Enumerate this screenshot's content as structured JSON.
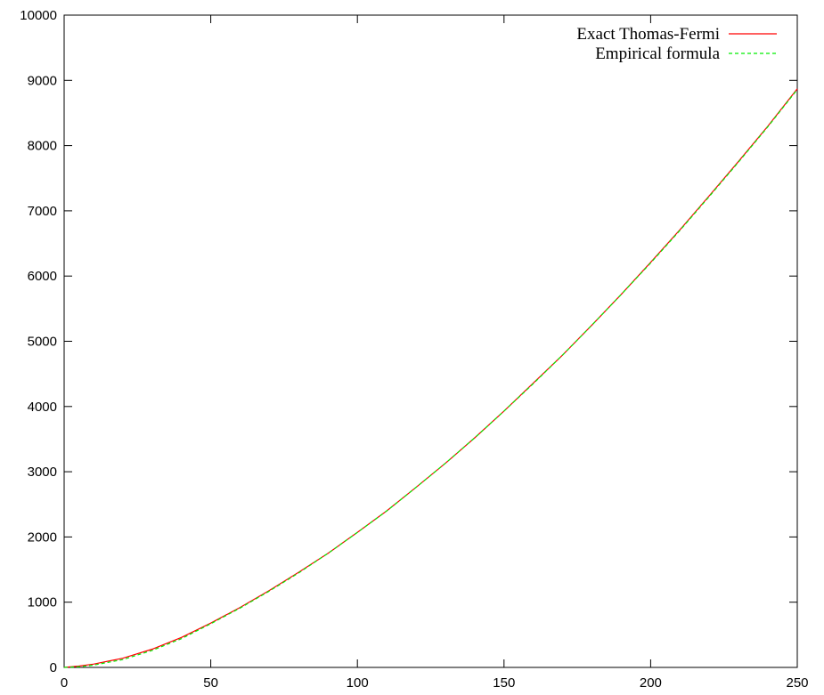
{
  "chart_data": {
    "type": "line",
    "title": "",
    "xlabel": "",
    "ylabel": "",
    "xlim": [
      0,
      250
    ],
    "ylim": [
      0,
      10000
    ],
    "xticks": [
      0,
      50,
      100,
      150,
      200,
      250
    ],
    "yticks": [
      0,
      1000,
      2000,
      3000,
      4000,
      5000,
      6000,
      7000,
      8000,
      9000,
      10000
    ],
    "grid": false,
    "legend_position": "top-right",
    "series": [
      {
        "name": "Exact Thomas-Fermi",
        "color": "#ff0000",
        "dash": "solid",
        "x": [
          0,
          5,
          10,
          20,
          30,
          40,
          50,
          60,
          70,
          80,
          90,
          100,
          110,
          120,
          130,
          140,
          150,
          160,
          170,
          180,
          190,
          200,
          210,
          220,
          230,
          240,
          250
        ],
        "y": [
          0,
          20,
          50,
          140,
          280,
          460,
          680,
          920,
          1180,
          1460,
          1750,
          2070,
          2400,
          2760,
          3130,
          3520,
          3930,
          4360,
          4790,
          5250,
          5720,
          6210,
          6710,
          7230,
          7760,
          8300,
          8870
        ]
      },
      {
        "name": "Empirical formula",
        "color": "#00ee00",
        "dash": "dashed",
        "x": [
          0,
          5,
          10,
          20,
          30,
          40,
          50,
          60,
          70,
          80,
          90,
          100,
          110,
          120,
          130,
          140,
          150,
          160,
          170,
          180,
          190,
          200,
          210,
          220,
          230,
          240,
          250
        ],
        "y": [
          0,
          10,
          35,
          120,
          260,
          440,
          670,
          910,
          1170,
          1450,
          1750,
          2070,
          2400,
          2760,
          3130,
          3520,
          3930,
          4350,
          4790,
          5250,
          5720,
          6200,
          6700,
          7220,
          7750,
          8290,
          8860
        ]
      }
    ]
  }
}
